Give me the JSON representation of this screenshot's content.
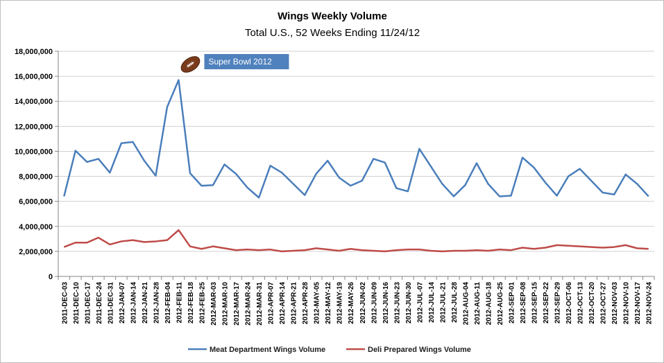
{
  "chart_data": {
    "type": "line",
    "title": "Wings Weekly Volume",
    "subtitle": "Total U.S., 52 Weeks Ending 11/24/12",
    "ylim": [
      0,
      18000000
    ],
    "yticks": [
      "0",
      "2,000,000",
      "4,000,000",
      "6,000,000",
      "8,000,000",
      "10,000,000",
      "12,000,000",
      "14,000,000",
      "16,000,000",
      "18,000,000"
    ],
    "ytick_values": [
      0,
      2000000,
      4000000,
      6000000,
      8000000,
      10000000,
      12000000,
      14000000,
      16000000,
      18000000
    ],
    "grid": "horizontal",
    "legend_position": "bottom",
    "categories": [
      "2011-DEC-03",
      "2011-DEC-10",
      "2011-DEC-17",
      "2011-DEC-24",
      "2011-DEC-31",
      "2012-JAN-07",
      "2012-JAN-14",
      "2012-JAN-21",
      "2012-JAN-28",
      "2012-FEB-04",
      "2012-FEB-11",
      "2012-FEB-18",
      "2012-FEB-25",
      "2012-MAR-03",
      "2012-MAR-10",
      "2012-MAR-17",
      "2012-MAR-24",
      "2012-MAR-31",
      "2012-APR-07",
      "2012-APR-14",
      "2012-APR-21",
      "2012-APR-28",
      "2012-MAY-05",
      "2012-MAY-12",
      "2012-MAY-19",
      "2012-MAY-26",
      "2012-JUN-02",
      "2012-JUN-09",
      "2012-JUN-16",
      "2012-JUN-23",
      "2012-JUN-30",
      "2012-JUL-07",
      "2012-JUL-14",
      "2012-JUL-21",
      "2012-JUL-28",
      "2012-AUG-04",
      "2012-AUG-11",
      "2012-AUG-18",
      "2012-AUG-25",
      "2012-SEP-01",
      "2012-SEP-08",
      "2012-SEP-15",
      "2012-SEP-22",
      "2012-SEP-29",
      "2012-OCT-06",
      "2012-OCT-13",
      "2012-OCT-20",
      "2012-OCT-27",
      "2012-NOV-03",
      "2012-NOV-10",
      "2012-NOV-17",
      "2012-NOV-24"
    ],
    "series": [
      {
        "name": "Meat Department Wings Volume",
        "color": "#4a7ebb",
        "values": [
          6400000,
          10050000,
          9150000,
          9400000,
          8300000,
          10650000,
          10750000,
          9250000,
          8050000,
          13550000,
          15700000,
          8250000,
          7250000,
          7300000,
          8950000,
          8200000,
          7100000,
          6300000,
          8850000,
          8300000,
          7400000,
          6500000,
          8200000,
          9250000,
          7900000,
          7250000,
          7650000,
          9400000,
          9100000,
          7050000,
          6800000,
          10200000,
          8800000,
          7400000,
          6400000,
          7300000,
          9050000,
          7400000,
          6400000,
          6450000,
          9500000,
          8700000,
          7500000,
          6450000,
          8000000,
          8600000,
          7650000,
          6700000,
          6550000,
          8150000,
          7400000,
          6400000
        ]
      },
      {
        "name": "Deli Prepared Wings Volume",
        "color": "#be4b48",
        "values": [
          2350000,
          2700000,
          2700000,
          3100000,
          2550000,
          2800000,
          2900000,
          2750000,
          2800000,
          2900000,
          3700000,
          2400000,
          2200000,
          2400000,
          2250000,
          2100000,
          2150000,
          2100000,
          2150000,
          2000000,
          2050000,
          2100000,
          2250000,
          2150000,
          2050000,
          2200000,
          2100000,
          2050000,
          2000000,
          2100000,
          2150000,
          2150000,
          2050000,
          2000000,
          2050000,
          2050000,
          2100000,
          2050000,
          2150000,
          2100000,
          2300000,
          2200000,
          2300000,
          2500000,
          2450000,
          2400000,
          2350000,
          2300000,
          2350000,
          2500000,
          2250000,
          2200000
        ]
      }
    ],
    "annotation": {
      "text": "Super Bowl 2012",
      "category": "2012-FEB-11",
      "icon": "football-icon",
      "box_color": "#4f81bd"
    }
  }
}
